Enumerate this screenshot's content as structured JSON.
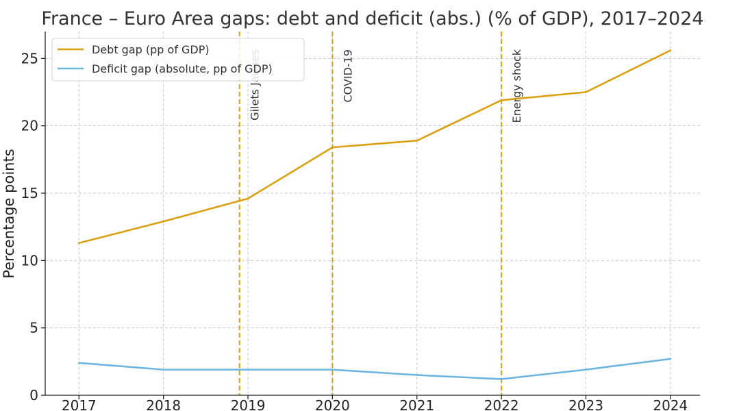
{
  "chart_data": {
    "type": "line",
    "title": "France – Euro Area gaps: debt and deficit (abs.) (% of GDP), 2017–2024",
    "xlabel": "",
    "ylabel": "Percentage points",
    "x": [
      2017,
      2018,
      2019,
      2020,
      2021,
      2022,
      2023,
      2024
    ],
    "x_tick_labels": [
      "2017",
      "2018",
      "2019",
      "2020",
      "2021",
      "2022",
      "2023",
      "2024"
    ],
    "xlim": [
      2016.6,
      2024.35
    ],
    "ylim": [
      0,
      27
    ],
    "y_ticks": [
      0,
      5,
      10,
      15,
      20,
      25
    ],
    "y_tick_labels": [
      "0",
      "5",
      "10",
      "15",
      "20",
      "25"
    ],
    "grid": true,
    "legend_position": "top-left",
    "series": [
      {
        "name": "Debt gap (pp of GDP)",
        "color": "#d9a012",
        "values": [
          11.3,
          12.9,
          14.6,
          18.4,
          18.9,
          21.9,
          22.5,
          25.6
        ]
      },
      {
        "name": "Deficit gap (absolute, pp of GDP)",
        "color": "#6eb4e0",
        "values": [
          2.4,
          1.9,
          1.9,
          1.9,
          1.5,
          1.2,
          1.9,
          2.7
        ]
      }
    ],
    "annotations": [
      {
        "label": "Gilets Jaunes",
        "x": 2018.9,
        "color": "#d9a012"
      },
      {
        "label": "COVID-19",
        "x": 2020.0,
        "color": "#d9a012"
      },
      {
        "label": "Energy shock",
        "x": 2022.0,
        "color": "#d9a012"
      }
    ]
  }
}
